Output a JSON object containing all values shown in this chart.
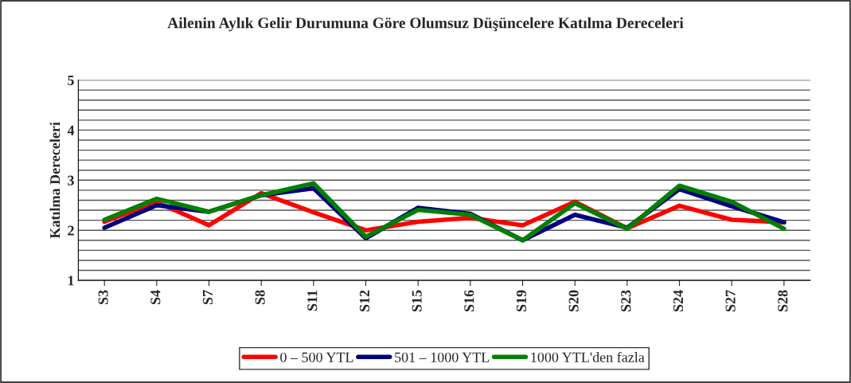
{
  "chart_data": {
    "type": "line",
    "title": "Ailenin Aylık Gelir Durumuna Göre Olumsuz Düşüncelere Katılma Dereceleri",
    "ylabel": "Katılma Dereceleri",
    "categories": [
      "S3",
      "S4",
      "S7",
      "S8",
      "S11",
      "S12",
      "S15",
      "S16",
      "S19",
      "S20",
      "S23",
      "S24",
      "S27",
      "S28"
    ],
    "series": [
      {
        "name": "0 – 500 YTL",
        "color": "#ff0000",
        "values": [
          2.17,
          2.56,
          2.1,
          2.74,
          2.36,
          2.0,
          2.17,
          2.25,
          2.1,
          2.57,
          2.04,
          2.49,
          2.21,
          2.16
        ]
      },
      {
        "name": "501 – 1000 YTL",
        "color": "#000080",
        "values": [
          2.05,
          2.5,
          2.37,
          2.7,
          2.84,
          1.84,
          2.45,
          2.33,
          1.8,
          2.31,
          2.05,
          2.82,
          2.48,
          2.16
        ]
      },
      {
        "name": "1000 YTL'den fazla",
        "color": "#008000",
        "values": [
          2.21,
          2.63,
          2.37,
          2.7,
          2.94,
          1.87,
          2.41,
          2.31,
          1.8,
          2.54,
          2.03,
          2.89,
          2.57,
          2.03
        ]
      }
    ],
    "ylim": [
      1,
      5
    ],
    "yticks": [
      1,
      {
        "value": 1.2,
        "label": null
      },
      {
        "value": 1.4,
        "label": null
      },
      {
        "value": 1.6,
        "label": null
      },
      {
        "value": 1.8,
        "label": null
      },
      2,
      {
        "value": 2.2,
        "label": null
      },
      {
        "value": 2.4,
        "label": null
      },
      {
        "value": 2.6,
        "label": null
      },
      {
        "value": 2.8,
        "label": null
      },
      3,
      {
        "value": 3.2,
        "label": null
      },
      {
        "value": 3.4,
        "label": null
      },
      {
        "value": 3.6,
        "label": null
      },
      {
        "value": 3.8,
        "label": null
      },
      4,
      {
        "value": 4.2,
        "label": null
      },
      {
        "value": 4.4,
        "label": null
      },
      {
        "value": 4.6,
        "label": null
      },
      {
        "value": 4.8,
        "label": null
      },
      5
    ],
    "grid": "y",
    "legend": "bottom",
    "marker": "none",
    "line_style": "solid"
  }
}
